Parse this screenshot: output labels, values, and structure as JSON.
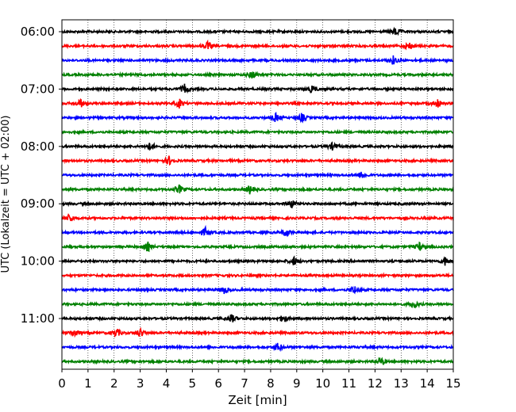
{
  "chart_data": {
    "type": "line",
    "title": "",
    "xlabel": "Zeit  [min]",
    "ylabel": "UTC (Lokalzeit = UTC + 02:00)",
    "xlim": [
      0,
      15
    ],
    "x_ticks": [
      0,
      1,
      2,
      3,
      4,
      5,
      6,
      7,
      8,
      9,
      10,
      11,
      12,
      13,
      14,
      15
    ],
    "y_tick_labels": [
      "06:00",
      "07:00",
      "08:00",
      "09:00",
      "10:00",
      "11:00"
    ],
    "trace_interval_minutes": 15,
    "first_trace": "06:00",
    "trace_count": 24,
    "trace_colors": [
      "#000000",
      "#ff0000",
      "#0000ff",
      "#008000"
    ],
    "grid": "vertical dotted lines at each minute",
    "events": [
      {
        "trace": "06:00",
        "minute": 12.8
      },
      {
        "trace": "06:15",
        "minute": 5.6
      },
      {
        "trace": "06:15",
        "minute": 13.3
      },
      {
        "trace": "06:30",
        "minute": 12.7
      },
      {
        "trace": "06:45",
        "minute": 7.3
      },
      {
        "trace": "07:00",
        "minute": 4.7
      },
      {
        "trace": "07:00",
        "minute": 9.6
      },
      {
        "trace": "07:15",
        "minute": 0.7
      },
      {
        "trace": "07:15",
        "minute": 4.5
      },
      {
        "trace": "07:15",
        "minute": 14.4
      },
      {
        "trace": "07:30",
        "minute": 8.2
      },
      {
        "trace": "07:30",
        "minute": 9.2
      },
      {
        "trace": "08:00",
        "minute": 3.4
      },
      {
        "trace": "08:00",
        "minute": 10.4
      },
      {
        "trace": "08:15",
        "minute": 4.1
      },
      {
        "trace": "08:30",
        "minute": 11.5
      },
      {
        "trace": "08:45",
        "minute": 4.5
      },
      {
        "trace": "08:45",
        "minute": 7.2
      },
      {
        "trace": "09:00",
        "minute": 8.8
      },
      {
        "trace": "09:15",
        "minute": 0.3
      },
      {
        "trace": "09:30",
        "minute": 5.5
      },
      {
        "trace": "09:30",
        "minute": 8.6
      },
      {
        "trace": "09:45",
        "minute": 3.3
      },
      {
        "trace": "09:45",
        "minute": 13.7
      },
      {
        "trace": "10:00",
        "minute": 8.9
      },
      {
        "trace": "10:00",
        "minute": 14.7
      },
      {
        "trace": "10:30",
        "minute": 6.2
      },
      {
        "trace": "10:30",
        "minute": 11.2
      },
      {
        "trace": "10:45",
        "minute": 13.5
      },
      {
        "trace": "11:00",
        "minute": 6.5
      },
      {
        "trace": "11:00",
        "minute": 8.5
      },
      {
        "trace": "11:15",
        "minute": 0.5
      },
      {
        "trace": "11:15",
        "minute": 2.1
      },
      {
        "trace": "11:15",
        "minute": 3.0
      },
      {
        "trace": "11:30",
        "minute": 8.3
      },
      {
        "trace": "11:45",
        "minute": 12.2
      }
    ]
  }
}
